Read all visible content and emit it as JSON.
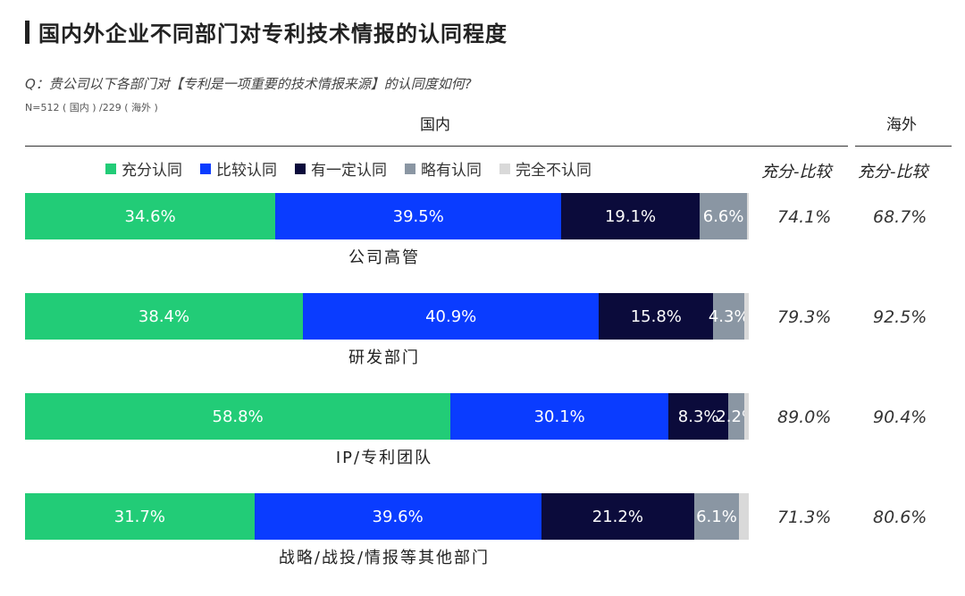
{
  "title": "国内外企业不同部门对专利技术情报的认同程度",
  "question": "Q：贵公司以下各部门对【专利是一项重要的技术情报来源】的认同度如何?",
  "note": "N=512 ( 国内 ) /229 ( 海外 )",
  "headers": {
    "domestic": "国内",
    "overseas": "海外"
  },
  "column_headers": {
    "domestic": "充分-比较",
    "overseas": "充分-比较"
  },
  "colors": {
    "strong": "#22cc77",
    "relative": "#0a3cff",
    "some": "#0b0b3b",
    "slight": "#8a96a3",
    "none": "#d9d9d9"
  },
  "chart_data": {
    "type": "bar",
    "orientation": "horizontal",
    "stacked": true,
    "title": "国内外企业不同部门对专利技术情报的认同程度",
    "categories": [
      "公司高管",
      "研发部门",
      "IP/专利团队",
      "战略/战投/情报等其他部门"
    ],
    "series": [
      {
        "name": "充分认同",
        "values": [
          34.6,
          38.4,
          58.8,
          31.7
        ]
      },
      {
        "name": "比较认同",
        "values": [
          39.5,
          40.9,
          30.1,
          39.6
        ]
      },
      {
        "name": "有一定认同",
        "values": [
          19.1,
          15.8,
          8.3,
          21.2
        ]
      },
      {
        "name": "略有认同",
        "values": [
          6.6,
          4.3,
          2.2,
          6.1
        ]
      },
      {
        "name": "完全不认同",
        "values": [
          0.2,
          0.6,
          0.6,
          1.4
        ]
      }
    ],
    "labels": [
      [
        "34.6%",
        "39.5%",
        "19.1%",
        "6.6%",
        ""
      ],
      [
        "38.4%",
        "40.9%",
        "15.8%",
        "4.3%",
        ""
      ],
      [
        "58.8%",
        "30.1%",
        "8.3%",
        "2.2%",
        ""
      ],
      [
        "31.7%",
        "39.6%",
        "21.2%",
        "6.1%",
        ""
      ]
    ],
    "domestic_totals": [
      "74.1%",
      "79.3%",
      "89.0%",
      "71.3%"
    ],
    "overseas_totals": [
      "68.7%",
      "92.5%",
      "90.4%",
      "80.6%"
    ],
    "xlim": [
      0,
      100
    ],
    "legend_position": "top"
  }
}
